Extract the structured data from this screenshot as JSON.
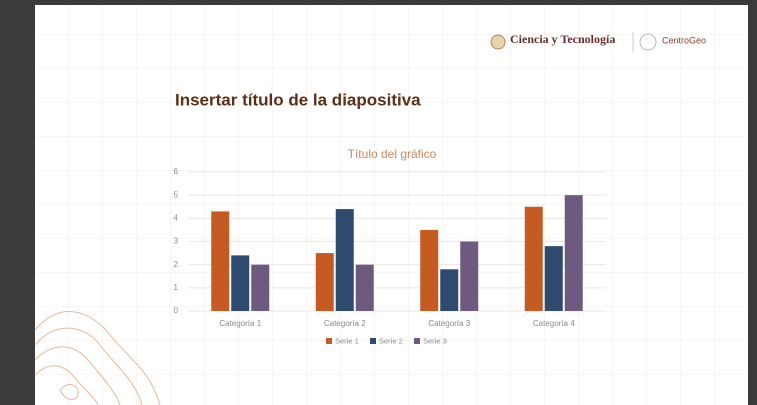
{
  "slide": {
    "title": "Insertar título de la diapositiva",
    "logo_left": "Ciencia y Tecnología",
    "logo_right": "CentroGeo"
  },
  "chart_data": {
    "type": "bar",
    "title": "Título del gráfico",
    "categories": [
      "Categoría 1",
      "Categoría 2",
      "Categoría 3",
      "Categoría 4"
    ],
    "series": [
      {
        "name": "Serie 1",
        "color": "#c55a22",
        "values": [
          4.3,
          2.5,
          3.5,
          4.5
        ]
      },
      {
        "name": "Serie 2",
        "color": "#2e4a6e",
        "values": [
          2.4,
          4.4,
          1.8,
          2.8
        ]
      },
      {
        "name": "Serie 3",
        "color": "#6e5a7e",
        "values": [
          2,
          2,
          3,
          5
        ]
      }
    ],
    "ylim": [
      0,
      6
    ],
    "yticks": [
      0,
      1,
      2,
      3,
      4,
      5,
      6
    ],
    "grid": true,
    "legend": "bottom"
  }
}
